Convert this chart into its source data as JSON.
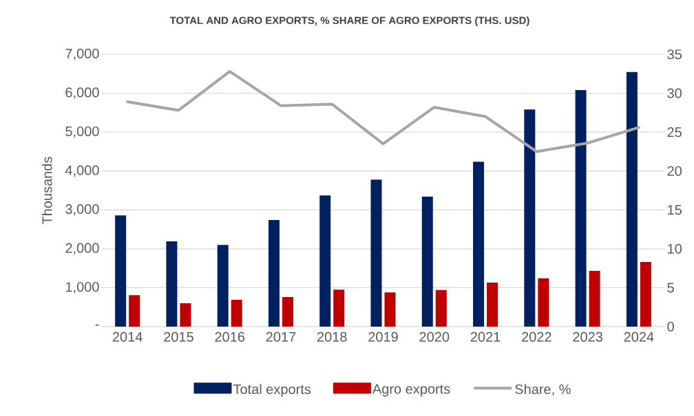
{
  "chart_data": {
    "type": "bar",
    "title": "TOTAL AND AGRO EXPORTS, % SHARE OF AGRO EXPORTS (THS. USD)",
    "ylabel": "Thousands",
    "categories": [
      "2014",
      "2015",
      "2016",
      "2017",
      "2018",
      "2019",
      "2020",
      "2021",
      "2022",
      "2023",
      "2024"
    ],
    "series": [
      {
        "name": "Total exports",
        "color": "#002060",
        "values": [
          2860,
          2190,
          2100,
          2740,
          3370,
          3780,
          3340,
          4240,
          5580,
          6080,
          6550
        ]
      },
      {
        "name": "Agro exports",
        "color": "#c00000",
        "values": [
          810,
          600,
          690,
          760,
          950,
          880,
          940,
          1130,
          1240,
          1430,
          1660
        ]
      },
      {
        "name": "Share, %",
        "type": "line",
        "axis": "y2",
        "color": "#a6a6a6",
        "line_style": "solid",
        "marker": "none",
        "values": [
          28.9,
          27.8,
          32.8,
          28.4,
          28.6,
          23.5,
          28.2,
          27.0,
          22.5,
          23.6,
          25.6
        ]
      }
    ],
    "ylim": [
      0,
      7000
    ],
    "yticks": [
      {
        "value": 0,
        "label": "-"
      },
      {
        "value": 1000,
        "label": "1,000"
      },
      {
        "value": 2000,
        "label": "2,000"
      },
      {
        "value": 3000,
        "label": "3,000"
      },
      {
        "value": 4000,
        "label": "4,000"
      },
      {
        "value": 5000,
        "label": "5,000"
      },
      {
        "value": 6000,
        "label": "6,000"
      },
      {
        "value": 7000,
        "label": "7,000"
      }
    ],
    "y2lim": [
      0,
      35
    ],
    "y2ticks": [
      0,
      5,
      10,
      15,
      20,
      25,
      30,
      35
    ],
    "grid": "y",
    "legend": "bottom"
  }
}
